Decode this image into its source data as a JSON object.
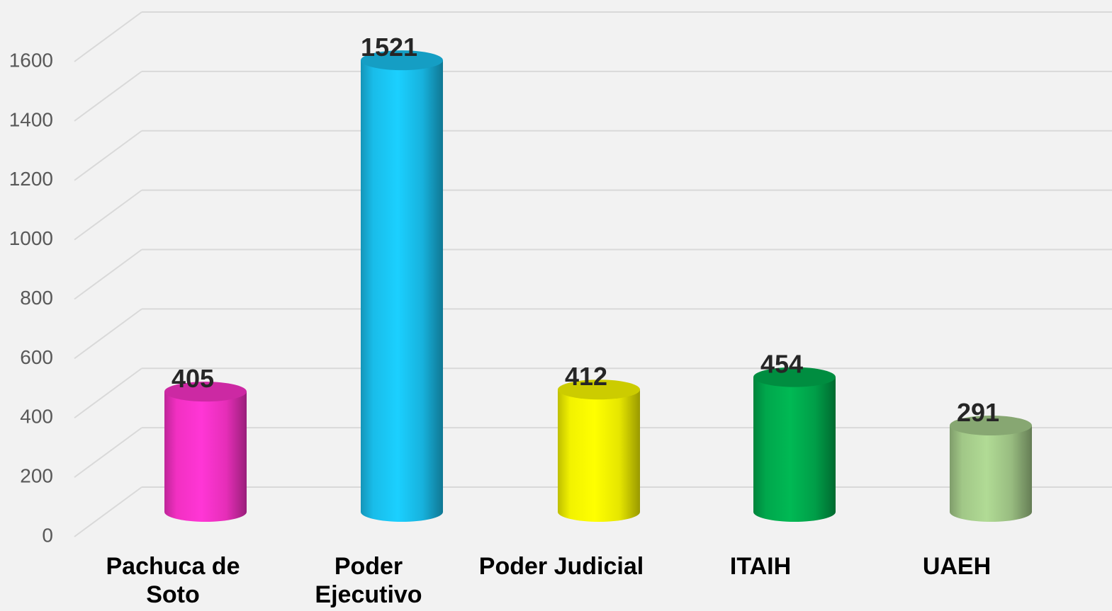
{
  "chart_data": {
    "type": "bar3d-cylinder",
    "categories": [
      "Pachuca de Soto",
      "Poder Ejecutivo",
      "Poder Judicial",
      "ITAIH",
      "UAEH"
    ],
    "values": [
      405,
      1521,
      412,
      454,
      291
    ],
    "colors": [
      "#ff33cc",
      "#1ac6f5",
      "#ffff00",
      "#00b050",
      "#a9d18e"
    ],
    "ylim": [
      0,
      1600
    ],
    "yticks": [
      0,
      200,
      400,
      600,
      800,
      1000,
      1200,
      1400,
      1600
    ],
    "grid": true
  }
}
